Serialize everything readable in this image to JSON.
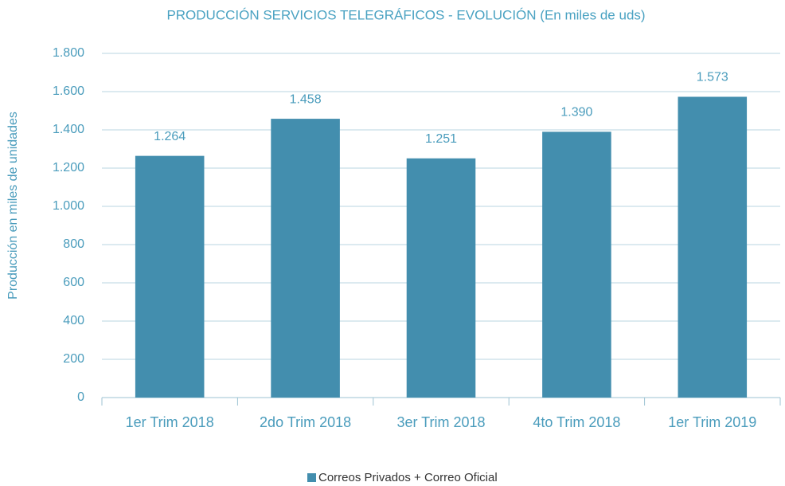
{
  "chart_data": {
    "type": "bar",
    "title": "PRODUCCIÓN SERVICIOS TELEGRÁFICOS - EVOLUCIÓN (En miles de uds)",
    "y_label": "Producción en miles de unidades",
    "categories": [
      "1er Trim 2018",
      "2do Trim 2018",
      "3er Trim 2018",
      "4to Trim 2018",
      "1er Trim 2019"
    ],
    "series": [
      {
        "name": "Correos Privados + Correo Oficial",
        "color": "#438eae",
        "values": [
          1264,
          1458,
          1251,
          1390,
          1573
        ],
        "value_labels": [
          "1.264",
          "1.458",
          "1.251",
          "1.390",
          "1.573"
        ]
      }
    ],
    "ylim": [
      0,
      1800
    ],
    "yticks": [
      0,
      200,
      400,
      600,
      800,
      {
        "value": 1000,
        "label": "1.000"
      },
      {
        "value": 1200,
        "label": "1.200"
      },
      {
        "value": 1400,
        "label": "1.400"
      },
      {
        "value": 1600,
        "label": "1.600"
      },
      {
        "value": 1800,
        "label": "1.800"
      }
    ],
    "grid": true,
    "legend": "bottom"
  }
}
